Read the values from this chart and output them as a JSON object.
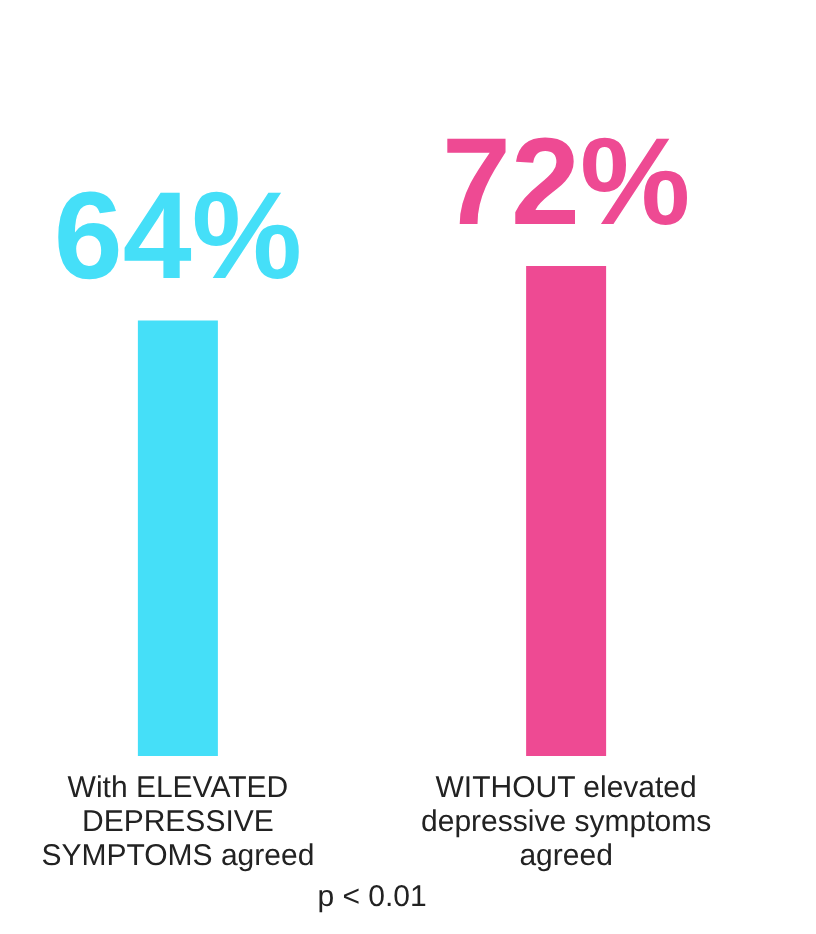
{
  "chart_data": {
    "type": "bar",
    "categories": [
      "With ELEVATED\nDEPRESSIVE\nSYMPTOMS agreed",
      "WITHOUT elevated\ndepressive symptoms\nagreed"
    ],
    "values": [
      64,
      72
    ],
    "colors": [
      "#45dff8",
      "#ee4a93"
    ],
    "value_labels": [
      "64%",
      "72%"
    ],
    "annotations": [
      "p < 0.01"
    ]
  }
}
